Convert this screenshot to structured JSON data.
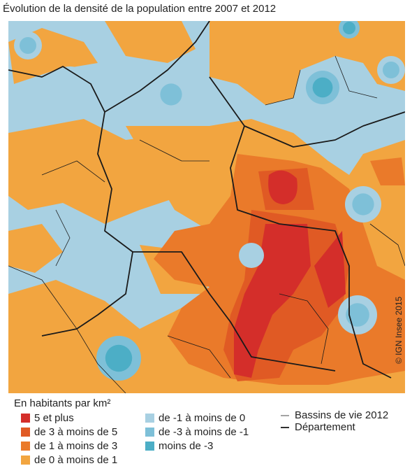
{
  "title": "Évolution de la densité de la population entre 2007 et 2012",
  "legend": {
    "title": "En habitants par km²",
    "classes": [
      {
        "label": "5 et plus",
        "color": "#d42e2a"
      },
      {
        "label": "de 3 à moins de 5",
        "color": "#e05a24"
      },
      {
        "label": "de 1 à moins de 3",
        "color": "#ea7a2a"
      },
      {
        "label": "de 0 à moins de 1",
        "color": "#f2a540"
      },
      {
        "label": "de -1 à moins de 0",
        "color": "#a8d0e2"
      },
      {
        "label": "de -3 à moins de -1",
        "color": "#7ec0d8"
      },
      {
        "label": "moins de -3",
        "color": "#4caec6"
      }
    ],
    "lines": [
      {
        "label": "Bassins de vie 2012"
      },
      {
        "label": "Département"
      }
    ]
  },
  "credit": "© IGN Insee 2015"
}
